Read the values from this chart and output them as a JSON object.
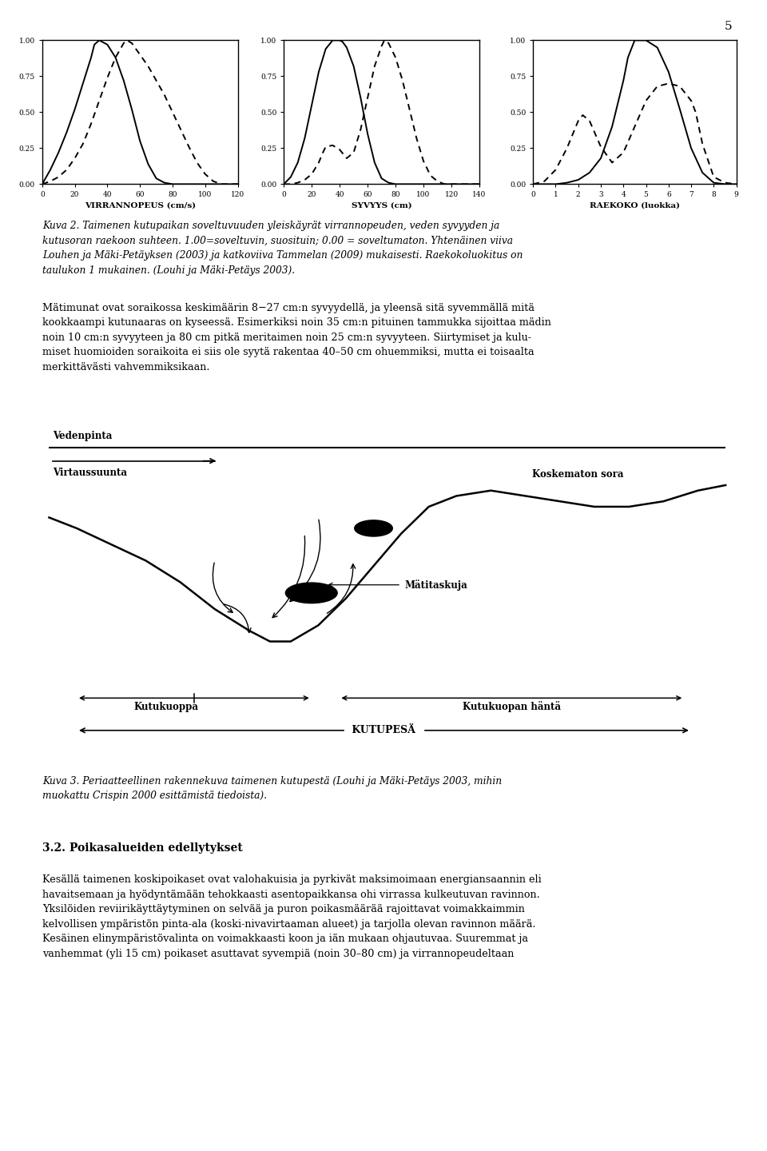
{
  "page_number": "5",
  "background_color": "#ffffff",
  "text_color": "#000000",
  "chart1": {
    "xlabel": "VIRRANNOPEUS (cm/s)",
    "xlim": [
      0,
      120
    ],
    "xticks": [
      0,
      20,
      40,
      60,
      80,
      100,
      120
    ],
    "ylim": [
      0.0,
      1.0
    ],
    "yticks": [
      0.0,
      0.25,
      0.5,
      0.75,
      1.0
    ],
    "solid_x": [
      0,
      5,
      10,
      15,
      20,
      25,
      30,
      32,
      35,
      40,
      45,
      50,
      55,
      60,
      65,
      70,
      75,
      80,
      85,
      90,
      95,
      100,
      105,
      110,
      115,
      120
    ],
    "solid_y": [
      0.0,
      0.1,
      0.22,
      0.36,
      0.52,
      0.7,
      0.88,
      0.97,
      1.0,
      0.97,
      0.88,
      0.72,
      0.52,
      0.3,
      0.14,
      0.04,
      0.01,
      0.0,
      0.0,
      0.0,
      0.0,
      0.0,
      0.0,
      0.0,
      0.0,
      0.0
    ],
    "dashed_x": [
      0,
      5,
      10,
      15,
      20,
      25,
      30,
      35,
      40,
      45,
      50,
      52,
      55,
      60,
      65,
      70,
      75,
      80,
      85,
      90,
      95,
      100,
      105,
      110,
      115,
      120
    ],
    "dashed_y": [
      0.0,
      0.02,
      0.05,
      0.1,
      0.18,
      0.28,
      0.42,
      0.58,
      0.74,
      0.88,
      0.98,
      1.0,
      0.98,
      0.9,
      0.82,
      0.72,
      0.62,
      0.5,
      0.38,
      0.26,
      0.15,
      0.07,
      0.02,
      0.0,
      0.0,
      0.0
    ]
  },
  "chart2": {
    "xlabel": "SYVYYS (cm)",
    "xlim": [
      0,
      140
    ],
    "xticks": [
      0,
      20,
      40,
      60,
      80,
      100,
      120,
      140
    ],
    "ylim": [
      0.0,
      1.0
    ],
    "yticks": [
      0.0,
      0.25,
      0.5,
      0.75,
      1.0
    ],
    "solid_x": [
      0,
      5,
      10,
      15,
      20,
      25,
      30,
      35,
      40,
      42,
      45,
      50,
      55,
      60,
      65,
      70,
      75,
      80,
      85,
      90,
      95,
      100,
      105,
      110,
      115,
      120,
      125,
      130,
      135,
      140
    ],
    "solid_y": [
      0.0,
      0.05,
      0.15,
      0.32,
      0.55,
      0.78,
      0.94,
      1.0,
      1.0,
      0.99,
      0.95,
      0.82,
      0.6,
      0.35,
      0.15,
      0.04,
      0.01,
      0.0,
      0.0,
      0.0,
      0.0,
      0.0,
      0.0,
      0.0,
      0.0,
      0.0,
      0.0,
      0.0,
      0.0,
      0.0
    ],
    "dashed_x": [
      0,
      5,
      10,
      15,
      20,
      25,
      28,
      30,
      35,
      40,
      45,
      50,
      55,
      60,
      65,
      70,
      72,
      75,
      80,
      85,
      90,
      95,
      100,
      105,
      110,
      115,
      120,
      125,
      130,
      135,
      140
    ],
    "dashed_y": [
      0.0,
      0.0,
      0.01,
      0.03,
      0.07,
      0.15,
      0.22,
      0.26,
      0.27,
      0.24,
      0.18,
      0.22,
      0.38,
      0.6,
      0.82,
      0.96,
      1.0,
      0.98,
      0.88,
      0.72,
      0.52,
      0.32,
      0.16,
      0.06,
      0.02,
      0.0,
      0.0,
      0.0,
      0.0,
      0.0,
      0.0
    ]
  },
  "chart3": {
    "xlabel": "RAEKOKO (luokka)",
    "xlim": [
      0,
      9
    ],
    "xticks": [
      0,
      1,
      2,
      3,
      4,
      5,
      6,
      7,
      8,
      9
    ],
    "ylim": [
      0.0,
      1.0
    ],
    "yticks": [
      0.0,
      0.25,
      0.5,
      0.75,
      1.0
    ],
    "solid_x": [
      0,
      0.5,
      1.0,
      1.5,
      2.0,
      2.5,
      3.0,
      3.5,
      4.0,
      4.2,
      4.5,
      5.0,
      5.5,
      6.0,
      6.5,
      7.0,
      7.5,
      8.0,
      8.5,
      9.0
    ],
    "solid_y": [
      0.0,
      0.0,
      0.0,
      0.01,
      0.03,
      0.08,
      0.18,
      0.4,
      0.72,
      0.88,
      1.0,
      1.0,
      0.95,
      0.78,
      0.52,
      0.25,
      0.08,
      0.01,
      0.0,
      0.0
    ],
    "dashed_x": [
      0,
      0.5,
      1.0,
      1.5,
      2.0,
      2.2,
      2.5,
      3.0,
      3.5,
      4.0,
      4.5,
      5.0,
      5.5,
      6.0,
      6.5,
      7.0,
      7.2,
      7.5,
      8.0,
      8.5,
      9.0
    ],
    "dashed_y": [
      0.0,
      0.02,
      0.1,
      0.25,
      0.44,
      0.48,
      0.44,
      0.26,
      0.15,
      0.22,
      0.4,
      0.58,
      0.68,
      0.7,
      0.68,
      0.58,
      0.5,
      0.28,
      0.05,
      0.01,
      0.0
    ]
  },
  "caption1_italic": "Kuva 2. Taimenen kutupaikan soveltuvuuden yleiskäyrät virrannopeuden, veden syvyyden ja\nkutusoran raekoon suhteen. 1.00=soveltuvin, suosituin; 0.00 = soveltumaton. Yhtenäinen viiva\nLouhen ja Mäki-Petäyksen (2003) ja katkoviiva Tammelan (2009) mukaisesti. Raekokoluokitus on\ntaulukon 1 mukainen. (Louhi ja Mäki-Petäys 2003).",
  "paragraph1_lines": [
    "Mätimunat ovat soraikossa keskimäärin 8−27 cm:n syvyydellä, ja yleensä sitä syvemmällä mitä",
    "kookkaampi kutunaaras on kyseessä. Esimerkiksi noin 35 cm:n pituinen tammukka sijoittaa mädin",
    "noin 10 cm:n syvyyteen ja 80 cm pitkä meritaimen noin 25 cm:n syvyyteen. Siirtymiset ja kulu-",
    "miset huomioiden soraikoita ei siis ole syytä rakentaa 40–50 cm ohuemmiksi, mutta ei toisaalta",
    "merkittävästi vahvemmiksikaan."
  ],
  "caption2_italic": "Kuva 3. Periaatteellinen rakennekuva taimenen kutupestä (Louhi ja Mäki-Petäys 2003, mihin\nmuokattu Crispin 2000 esittämistä tiedoista).",
  "section_title": "3.2. Poikasalueiden edellytykset",
  "paragraph2_lines": [
    "Kesällä taimenen koskipoikaset ovat valohakuisia ja pyrkivät maksimoimaan energiansaannin eli",
    "havaitsemaan ja hyödyntämään tehokkaasti asentopaikkansa ohi virrassa kulkeutuvan ravinnon.",
    "Yksilöiden reviirikäyttäytyminen on selvää ja puron poikasmäärää rajoittavat voimakkaimmin",
    "kelvollisen ympäristön pinta-ala (koski-nivavirtaaman alueet) ja tarjolla olevan ravinnon määrä.",
    "Kesäinen elinympäristövalinta on voimakkaasti koon ja iän mukaan ohjautuvaa. Suuremmat ja",
    "vanhemmat (yli 15 cm) poikaset asuttavat syvempiä (noin 30–80 cm) ja virrannopeudeltaan"
  ]
}
